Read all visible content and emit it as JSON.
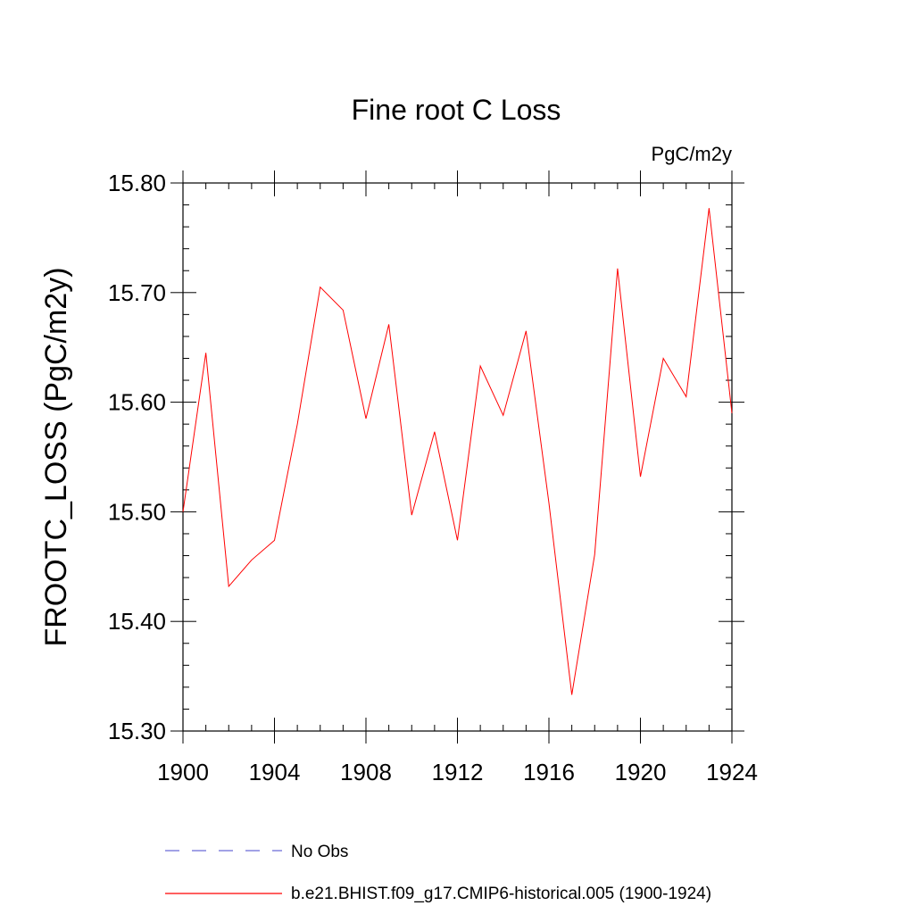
{
  "chart_data": {
    "type": "line",
    "title": "Fine root C Loss",
    "units": "PgC/m2y",
    "ylabel": "FROOTC_LOSS  (PgC/m2y)",
    "xlabel": "",
    "xlim": [
      1900,
      1924
    ],
    "ylim": [
      15.3,
      15.8
    ],
    "x_ticks": [
      "1900",
      "1904",
      "1908",
      "1912",
      "1916",
      "1920",
      "1924"
    ],
    "y_ticks": [
      "15.30",
      "15.40",
      "15.50",
      "15.60",
      "15.70",
      "15.80"
    ],
    "grid": false,
    "x": [
      1900,
      1901,
      1902,
      1903,
      1904,
      1905,
      1906,
      1907,
      1908,
      1909,
      1910,
      1911,
      1912,
      1913,
      1914,
      1915,
      1916,
      1917,
      1918,
      1919,
      1920,
      1921,
      1922,
      1923,
      1924
    ],
    "series": [
      {
        "name": "b.e21.BHIST.f09_g17.CMIP6-historical.005 (1900-1924)",
        "color": "#ff0000",
        "style": "solid",
        "values": [
          15.5,
          15.645,
          15.432,
          15.456,
          15.474,
          15.58,
          15.705,
          15.684,
          15.585,
          15.671,
          15.497,
          15.573,
          15.474,
          15.633,
          15.588,
          15.665,
          15.508,
          15.333,
          15.461,
          15.722,
          15.532,
          15.64,
          15.605,
          15.777,
          15.59
        ]
      }
    ],
    "legend": [
      {
        "label": "No Obs",
        "color": "#6a6ad8",
        "style": "dashed"
      },
      {
        "label": "b.e21.BHIST.f09_g17.CMIP6-historical.005 (1900-1924)",
        "color": "#ff0000",
        "style": "solid"
      }
    ]
  }
}
